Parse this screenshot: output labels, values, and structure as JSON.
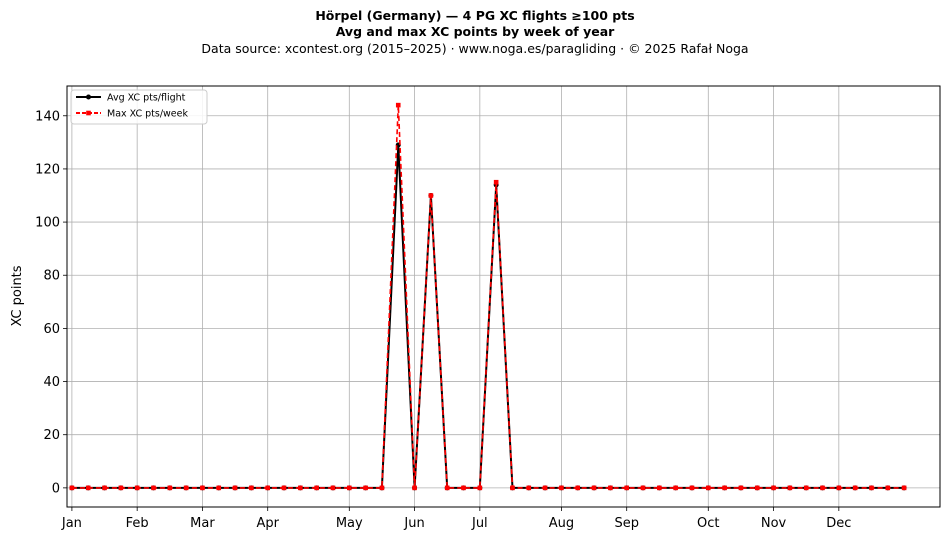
{
  "chart_data": {
    "type": "line",
    "title": "Hörpel (Germany)  —  4 PG XC flights ≥100 pts",
    "subtitle": "Avg and max XC points by week of year",
    "source_line": "Data source: xcontest.org (2015–2025)  ·  www.noga.es/paragliding  ·  © 2025 Rafał Noga",
    "xlabel": "",
    "ylabel": "XC points",
    "xlim": [
      -0.3,
      53.2
    ],
    "ylim": [
      -7.2,
      151.2
    ],
    "y_ticks": [
      0,
      20,
      40,
      60,
      80,
      100,
      120,
      140
    ],
    "x_ticks": [
      {
        "label": "Jan",
        "week": 0
      },
      {
        "label": "Feb",
        "week": 4
      },
      {
        "label": "Mar",
        "week": 8
      },
      {
        "label": "Apr",
        "week": 12
      },
      {
        "label": "May",
        "week": 17
      },
      {
        "label": "Jun",
        "week": 21
      },
      {
        "label": "Jul",
        "week": 25
      },
      {
        "label": "Aug",
        "week": 30
      },
      {
        "label": "Sep",
        "week": 34
      },
      {
        "label": "Oct",
        "week": 39
      },
      {
        "label": "Nov",
        "week": 43
      },
      {
        "label": "Dec",
        "week": 47
      }
    ],
    "grid": true,
    "legend_position": "top-left",
    "x": [
      0,
      1,
      2,
      3,
      4,
      5,
      6,
      7,
      8,
      9,
      10,
      11,
      12,
      13,
      14,
      15,
      16,
      17,
      18,
      19,
      20,
      21,
      22,
      23,
      24,
      25,
      26,
      27,
      28,
      29,
      30,
      31,
      32,
      33,
      34,
      35,
      36,
      37,
      38,
      39,
      40,
      41,
      42,
      43,
      44,
      45,
      46,
      47,
      48,
      49,
      50,
      51
    ],
    "series": [
      {
        "name": "Avg XC pts/flight",
        "color": "#000000",
        "style": "solid-circle",
        "values": [
          0,
          0,
          0,
          0,
          0,
          0,
          0,
          0,
          0,
          0,
          0,
          0,
          0,
          0,
          0,
          0,
          0,
          0,
          0,
          0,
          129,
          0,
          110,
          0,
          0,
          0,
          114,
          0,
          0,
          0,
          0,
          0,
          0,
          0,
          0,
          0,
          0,
          0,
          0,
          0,
          0,
          0,
          0,
          0,
          0,
          0,
          0,
          0,
          0,
          0,
          0,
          0
        ]
      },
      {
        "name": "Max XC pts/week",
        "color": "#ff0000",
        "style": "dashed-square",
        "values": [
          0,
          0,
          0,
          0,
          0,
          0,
          0,
          0,
          0,
          0,
          0,
          0,
          0,
          0,
          0,
          0,
          0,
          0,
          0,
          0,
          144,
          0,
          110,
          0,
          0,
          0,
          115,
          0,
          0,
          0,
          0,
          0,
          0,
          0,
          0,
          0,
          0,
          0,
          0,
          0,
          0,
          0,
          0,
          0,
          0,
          0,
          0,
          0,
          0,
          0,
          0,
          0
        ]
      }
    ]
  }
}
